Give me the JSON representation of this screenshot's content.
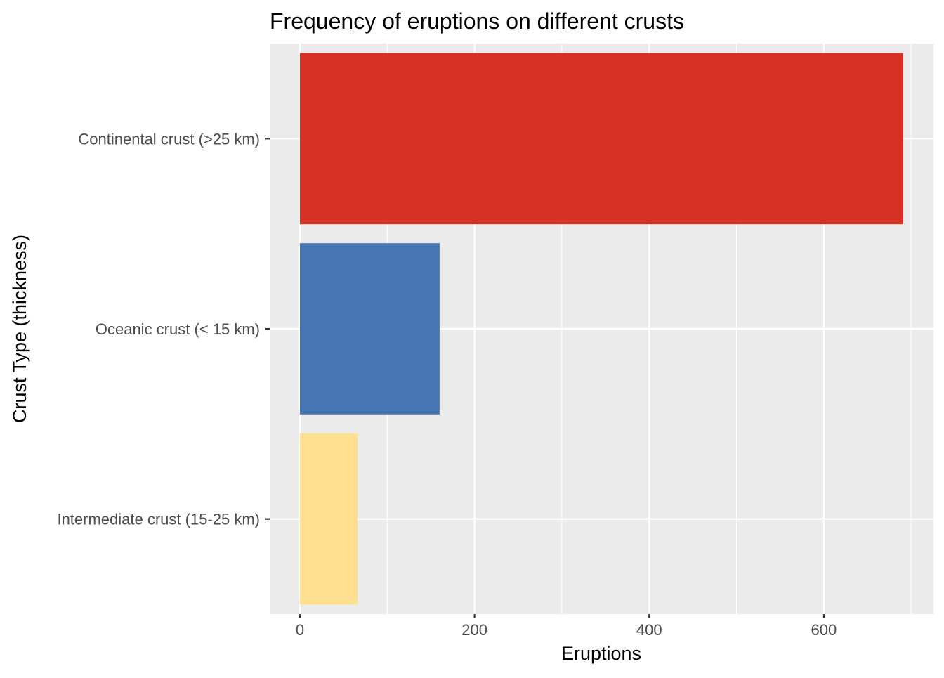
{
  "chart_data": {
    "type": "bar",
    "orientation": "horizontal",
    "title": "Frequency of eruptions on different crusts",
    "xlabel": "Eruptions",
    "ylabel": "Crust Type (thickness)",
    "categories": [
      "Continental crust (>25 km)",
      "Oceanic crust (< 15 km)",
      "Intermediate crust (15-25 km)"
    ],
    "values": [
      691,
      160,
      66
    ],
    "colors": [
      "#d73027",
      "#4575b4",
      "#fee090"
    ],
    "xlim": [
      -34.55,
      725.55
    ],
    "xticks": [
      0,
      200,
      400,
      600
    ],
    "xtick_labels": [
      "0",
      "200",
      "400",
      "600"
    ],
    "grid": true,
    "panel_background": "#ebebeb",
    "grid_color": "#ffffff",
    "legend": "none"
  }
}
